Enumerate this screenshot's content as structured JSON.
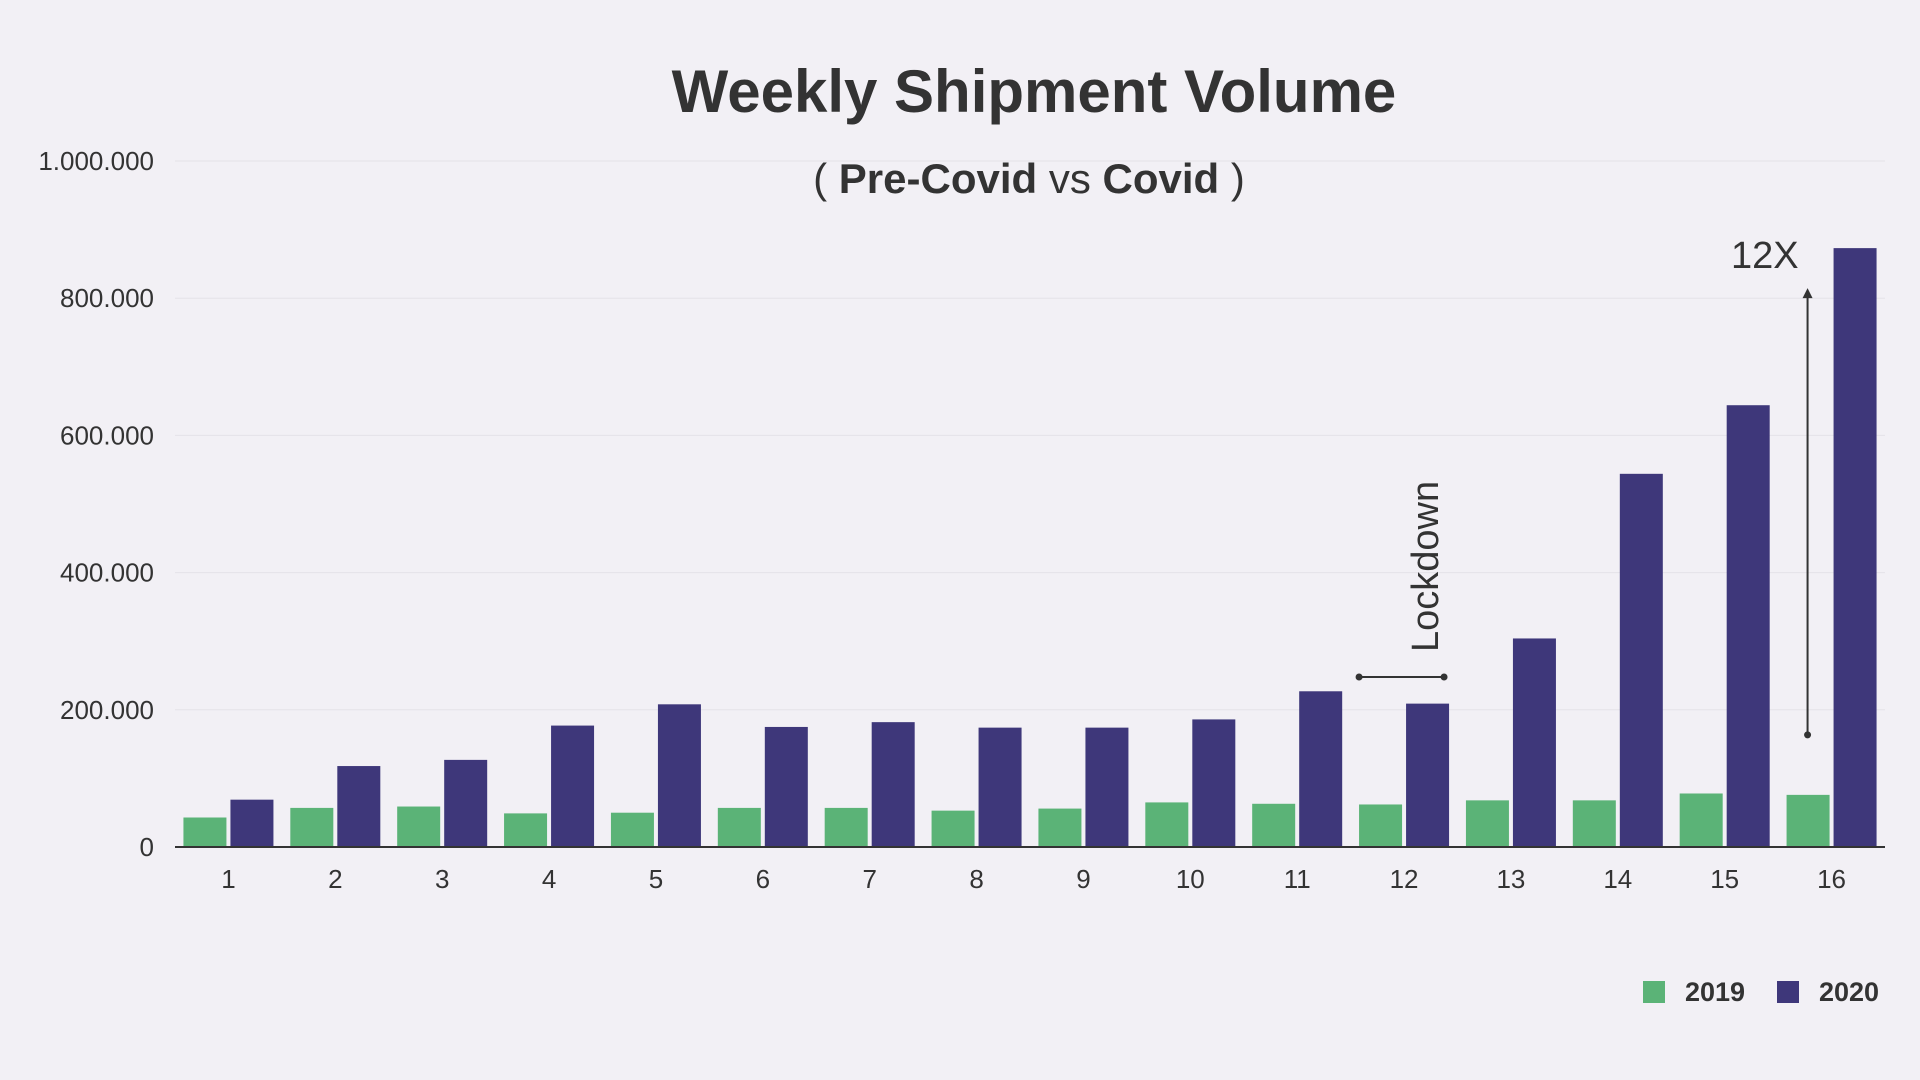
{
  "chart_data": {
    "type": "bar",
    "title": "Weekly Shipment Volume",
    "subtitle": {
      "open": "( ",
      "bold_a": "Pre-Covid",
      "mid": " vs ",
      "bold_b": "Covid",
      "close": " )"
    },
    "categories": [
      "1",
      "2",
      "3",
      "4",
      "5",
      "6",
      "7",
      "8",
      "9",
      "10",
      "11",
      "12",
      "13",
      "14",
      "15",
      "16"
    ],
    "series": [
      {
        "name": "2019",
        "color": "#5bb377",
        "values": [
          43000,
          57000,
          59000,
          49000,
          50000,
          57000,
          57000,
          53000,
          56000,
          65000,
          63000,
          62000,
          68000,
          68000,
          78000,
          76000
        ]
      },
      {
        "name": "2020",
        "color": "#3e377a",
        "values": [
          69000,
          118000,
          127000,
          177000,
          208000,
          175000,
          182000,
          174000,
          174000,
          186000,
          227000,
          209000,
          304000,
          544000,
          644000,
          873000
        ]
      }
    ],
    "ylim": [
      0,
      1000000
    ],
    "yticks": [
      0,
      200000,
      400000,
      600000,
      800000,
      1000000
    ],
    "ytick_labels": [
      "0",
      "200.000",
      "400.000",
      "600.000",
      "800.000",
      "1.000.000"
    ],
    "grid": true,
    "legend_position": "bottom-right",
    "annotations": {
      "lockdown_label": "Lockdown",
      "growth_label": "12X"
    }
  }
}
